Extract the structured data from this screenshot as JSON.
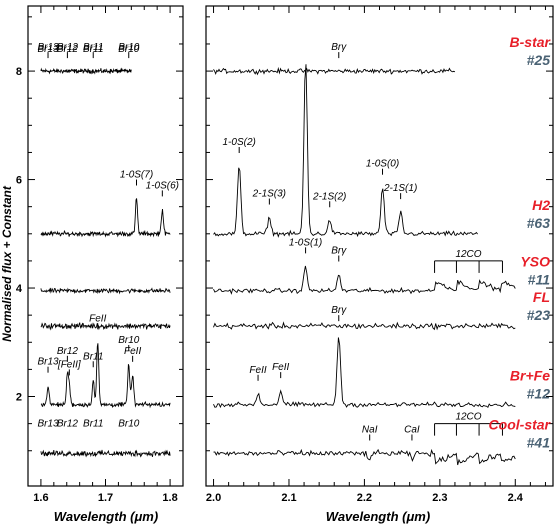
{
  "chart_data": {
    "type": "line",
    "ylabel": "Normalised flux + Constant",
    "panels": [
      {
        "id": "left",
        "xlabel": "Wavelength (μm)",
        "xlim": [
          1.58,
          1.82
        ],
        "xticks": [
          "1.6",
          "1.7",
          "1.8"
        ]
      },
      {
        "id": "right",
        "xlabel": "Wavelength (μm)",
        "xlim": [
          1.99,
          2.45
        ],
        "xticks": [
          "2.0",
          "2.1",
          "2.2",
          "2.3",
          "2.4"
        ]
      }
    ],
    "ylim": [
      0.35,
      9.2
    ],
    "yticks": [
      "2",
      "4",
      "6",
      "8"
    ],
    "series": [
      {
        "type_label": "B-star",
        "id_label": "#25",
        "level": 8.0,
        "lines": [
          {
            "panel": "left",
            "x": 1.611,
            "peak": 0,
            "label": "Br13"
          },
          {
            "panel": "left",
            "x": 1.641,
            "peak": 0,
            "label": "Br12"
          },
          {
            "panel": "left",
            "x": 1.681,
            "peak": 0,
            "label": "Br11"
          },
          {
            "panel": "left",
            "x": 1.736,
            "peak": 0,
            "label": "Br10"
          },
          {
            "panel": "right",
            "x": 2.166,
            "peak": 0,
            "label": "Brγ"
          }
        ],
        "left_range": [
          1.6,
          1.74
        ],
        "right_range": [
          2.0,
          2.32
        ]
      },
      {
        "type_label": "H2",
        "id_label": "#63",
        "level": 5.0,
        "lines": [
          {
            "panel": "left",
            "x": 1.748,
            "peak": 0.65,
            "label": "1-0S(7)"
          },
          {
            "panel": "left",
            "x": 1.788,
            "peak": 0.45,
            "label": "1-0S(6)"
          },
          {
            "panel": "right",
            "x": 2.034,
            "peak": 1.25,
            "label": "1-0S(2)"
          },
          {
            "panel": "right",
            "x": 2.074,
            "peak": 0.3,
            "label": "2-1S(3)"
          },
          {
            "panel": "right",
            "x": 2.122,
            "peak": 3.2,
            "label": ""
          },
          {
            "panel": "right",
            "x": 2.154,
            "peak": 0.25,
            "label": "2-1S(2)"
          },
          {
            "panel": "right",
            "x": 2.224,
            "peak": 0.85,
            "label": "1-0S(0)"
          },
          {
            "panel": "right",
            "x": 2.248,
            "peak": 0.4,
            "label": "2-1S(1)"
          }
        ],
        "left_range": [
          1.6,
          1.8
        ],
        "right_range": [
          2.0,
          2.35
        ]
      },
      {
        "type_label": "YSO",
        "id_label": "#11",
        "level": 3.95,
        "lines": [
          {
            "panel": "right",
            "x": 2.122,
            "peak": 0.45,
            "label": "1-0S(1)"
          },
          {
            "panel": "right",
            "x": 2.166,
            "peak": 0.3,
            "label": "Brγ"
          }
        ],
        "co_band": {
          "label": "12CO"
        },
        "left_range": [
          1.6,
          1.8
        ],
        "right_range": [
          2.0,
          2.4
        ]
      },
      {
        "type_label": "FL",
        "id_label": "#23",
        "level": 3.3,
        "lines": [],
        "left_range": [
          1.6,
          1.8
        ],
        "right_range": [
          2.0,
          2.4
        ]
      },
      {
        "type_label": "Br+Fe",
        "id_label": "#12",
        "level": 1.85,
        "lines": [
          {
            "panel": "left",
            "x": 1.611,
            "peak": 0.35,
            "label": "Br13"
          },
          {
            "panel": "left",
            "x": 1.641,
            "peak": 0.55,
            "label": "Br12"
          },
          {
            "panel": "left",
            "x": 1.644,
            "peak": 0.3,
            "label": "[FeII]"
          },
          {
            "panel": "left",
            "x": 1.681,
            "peak": 0.45,
            "label": "Br11"
          },
          {
            "panel": "left",
            "x": 1.688,
            "peak": 1.15,
            "label": "FeII"
          },
          {
            "panel": "left",
            "x": 1.736,
            "peak": 0.75,
            "label": "Br10"
          },
          {
            "panel": "left",
            "x": 1.742,
            "peak": 0.55,
            "label": "FeII"
          },
          {
            "panel": "right",
            "x": 2.059,
            "peak": 0.2,
            "label": "FeII"
          },
          {
            "panel": "right",
            "x": 2.089,
            "peak": 0.25,
            "label": "FeII"
          },
          {
            "panel": "right",
            "x": 2.166,
            "peak": 1.3,
            "label": "Brγ"
          }
        ],
        "left_range": [
          1.6,
          1.8
        ],
        "right_range": [
          2.0,
          2.4
        ]
      },
      {
        "type_label": "Cool-star",
        "id_label": "#41",
        "level": 0.95,
        "lines": [
          {
            "panel": "right",
            "x": 2.207,
            "peak": -0.1,
            "label": "NaI"
          },
          {
            "panel": "right",
            "x": 2.263,
            "peak": -0.1,
            "label": "CaI"
          }
        ],
        "co_band": {
          "label": "12CO"
        },
        "left_range": [
          1.6,
          1.8
        ],
        "right_range": [
          2.0,
          2.4
        ]
      }
    ],
    "left_labels": {
      "top": [
        "Br13",
        "Br12",
        "Br11",
        "Br10"
      ],
      "bottom": [
        "Br13",
        "Br12",
        "Br11",
        "Br10"
      ]
    }
  }
}
